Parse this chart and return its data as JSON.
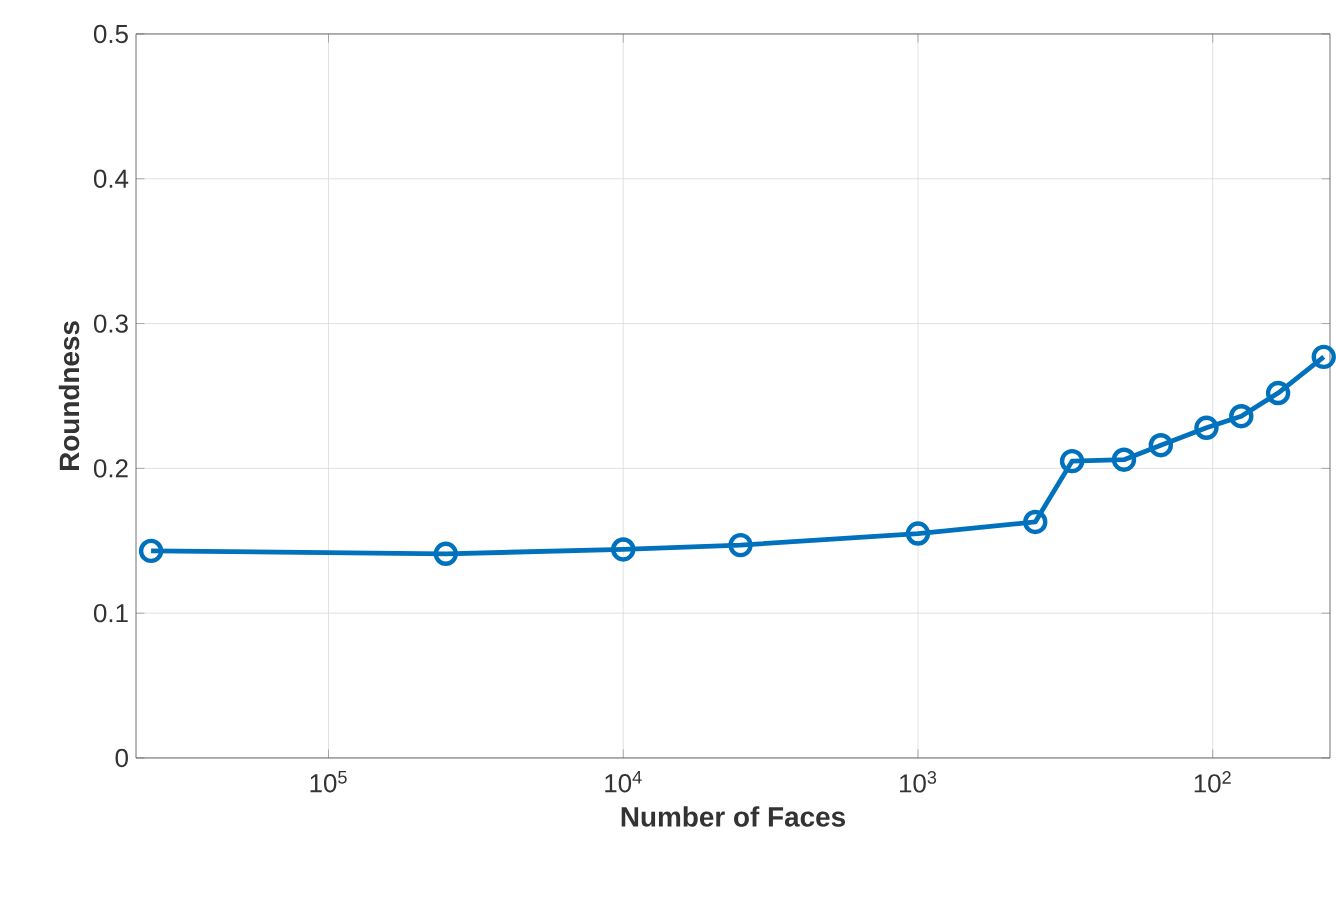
{
  "chart_data": {
    "type": "line",
    "xlabel": "Number of Faces",
    "ylabel": "Roundness",
    "x": [
      400000,
      40000,
      10000,
      4000,
      1000,
      400,
      300,
      200,
      150,
      105,
      80,
      60,
      42
    ],
    "series": [
      {
        "color": "#0072bd",
        "values": [
          0.143,
          0.141,
          0.144,
          0.147,
          0.155,
          0.163,
          0.205,
          0.206,
          0.216,
          0.228,
          0.236,
          0.252,
          0.277
        ]
      }
    ],
    "log": "x",
    "xlim": [
      450000,
      40
    ],
    "ylim": [
      0,
      0.5
    ],
    "xticks": [
      {
        "value": 100000,
        "label": "10$^{5}$"
      },
      {
        "value": 10000,
        "label": "10$^{4}$"
      },
      {
        "value": 1000,
        "label": "10$^{3}$"
      },
      {
        "value": 100,
        "label": "10$^{2}$"
      }
    ],
    "yticks": [
      0,
      0.1,
      0.2,
      0.3,
      0.4,
      0.5
    ],
    "grid": true,
    "marker": "circle",
    "line_style": "solid"
  }
}
